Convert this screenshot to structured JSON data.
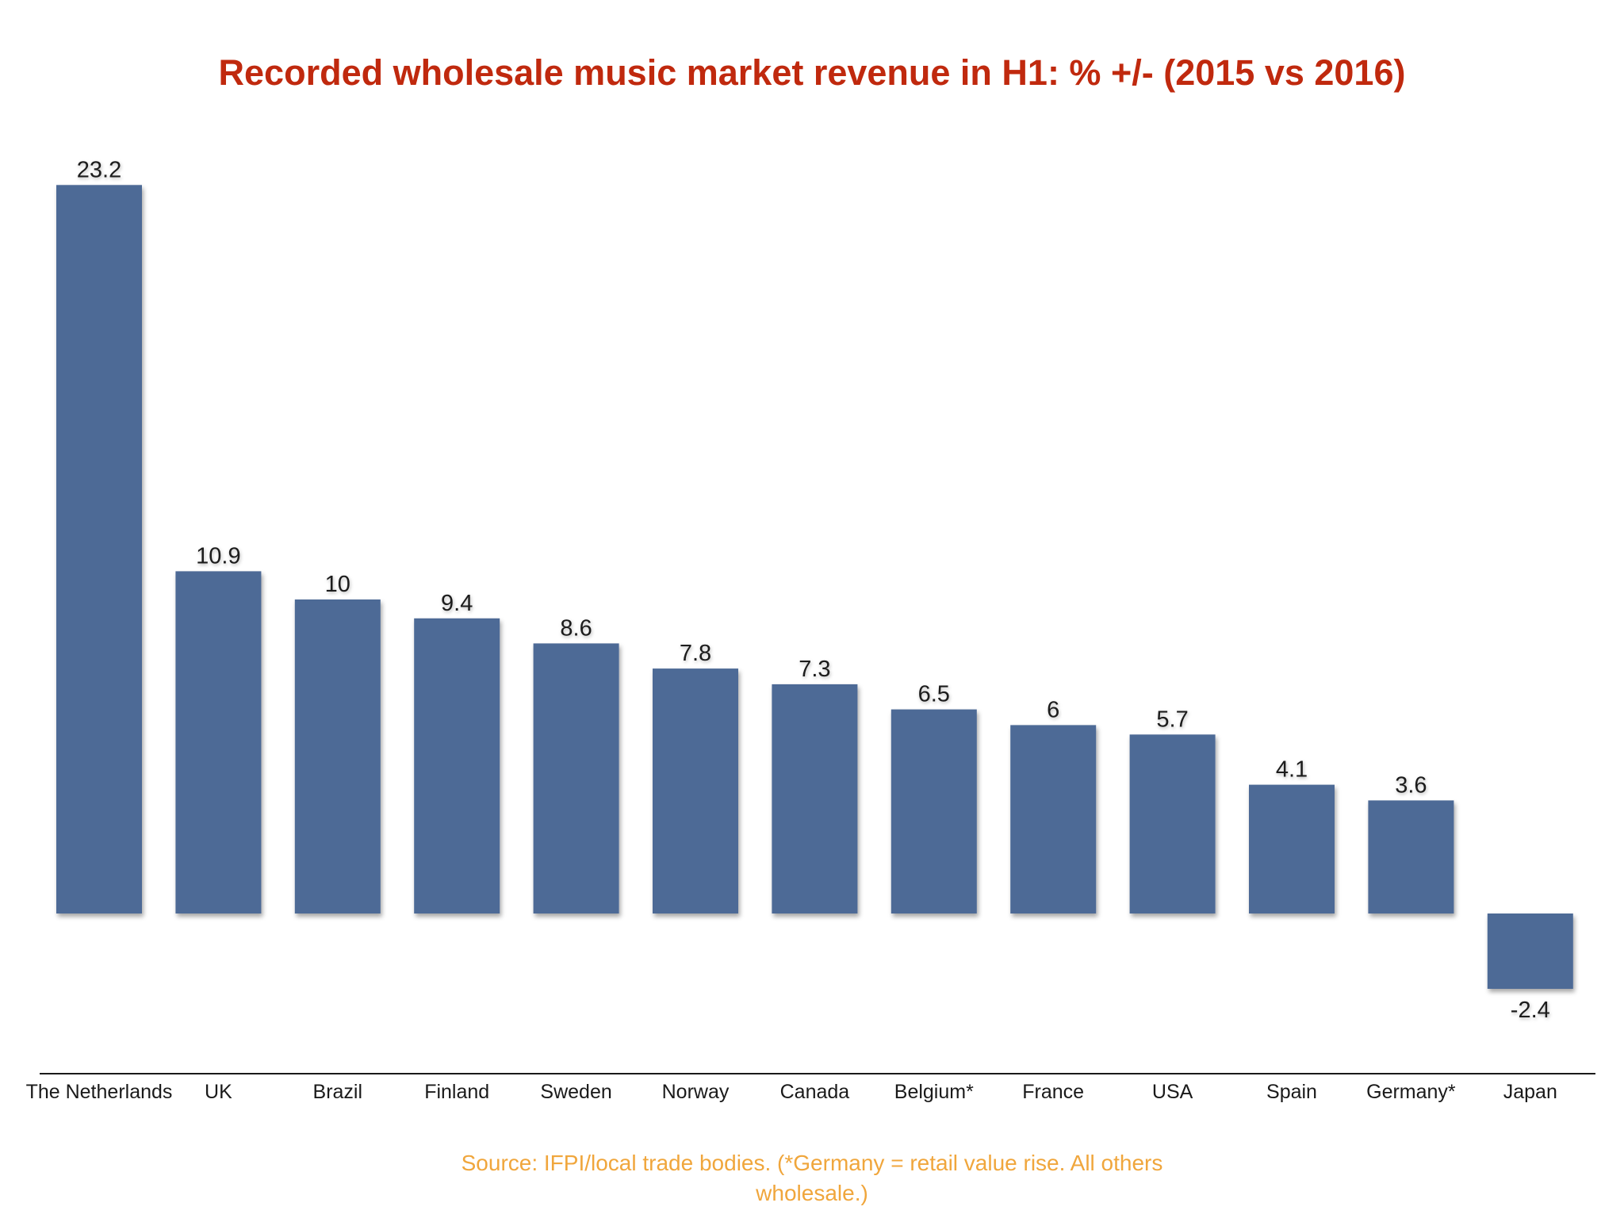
{
  "chart_data": {
    "type": "bar",
    "title": "Recorded wholesale music market revenue in H1: % +/- (2015 vs 2016)",
    "categories": [
      "The Netherlands",
      "UK",
      "Brazil",
      "Finland",
      "Sweden",
      "Norway",
      "Canada",
      "Belgium*",
      "France",
      "USA",
      "Spain",
      "Germany*",
      "Japan"
    ],
    "values": [
      23.2,
      10.9,
      10,
      9.4,
      8.6,
      7.8,
      7.3,
      6.5,
      6,
      5.7,
      4.1,
      3.6,
      -2.4
    ],
    "value_labels": [
      "23.2",
      "10.9",
      "10",
      "9.4",
      "8.6",
      "7.8",
      "7.3",
      "6.5",
      "6",
      "5.7",
      "4.1",
      "3.6",
      "-2.4"
    ],
    "xlabel": "",
    "ylabel": "",
    "ylim": [
      -2.4,
      23.2
    ],
    "grid": false,
    "legend": "none",
    "data_labels": true
  },
  "source_note": "Source: IFPI/local trade bodies. (*Germany = retail value rise. All others wholesale.)",
  "colors": {
    "title": "#c0290e",
    "bar": "#4d6a96",
    "source_note": "#f0a63c",
    "axis_line": "#1a1a1a"
  }
}
